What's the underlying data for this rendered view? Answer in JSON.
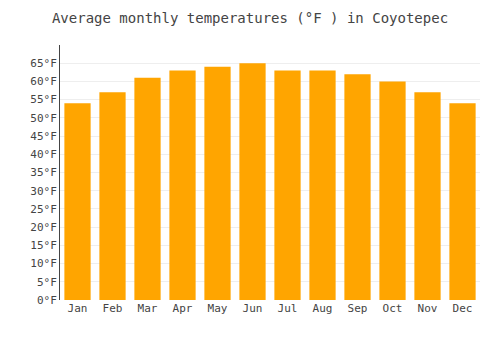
{
  "chart_data": {
    "type": "bar",
    "title": "Average monthly temperatures (°F ) in Coyotepec",
    "categories": [
      "Jan",
      "Feb",
      "Mar",
      "Apr",
      "May",
      "Jun",
      "Jul",
      "Aug",
      "Sep",
      "Oct",
      "Nov",
      "Dec"
    ],
    "values": [
      54,
      57,
      61,
      63,
      64,
      65,
      63,
      63,
      62,
      60,
      57,
      54
    ],
    "color": "#FFA500",
    "ylim": [
      0,
      70
    ],
    "yticks": [
      {
        "value": 0,
        "label": "0°F"
      },
      {
        "value": 5,
        "label": "5°F"
      },
      {
        "value": 10,
        "label": "10°F"
      },
      {
        "value": 15,
        "label": "15°F"
      },
      {
        "value": 20,
        "label": "20°F"
      },
      {
        "value": 25,
        "label": "25°F"
      },
      {
        "value": 30,
        "label": "30°F"
      },
      {
        "value": 35,
        "label": "35°F"
      },
      {
        "value": 40,
        "label": "40°F"
      },
      {
        "value": 45,
        "label": "45°F"
      },
      {
        "value": 50,
        "label": "50°F"
      },
      {
        "value": 55,
        "label": "55°F"
      },
      {
        "value": 60,
        "label": "60°F"
      },
      {
        "value": 65,
        "label": "65°F"
      }
    ],
    "grid": true
  }
}
